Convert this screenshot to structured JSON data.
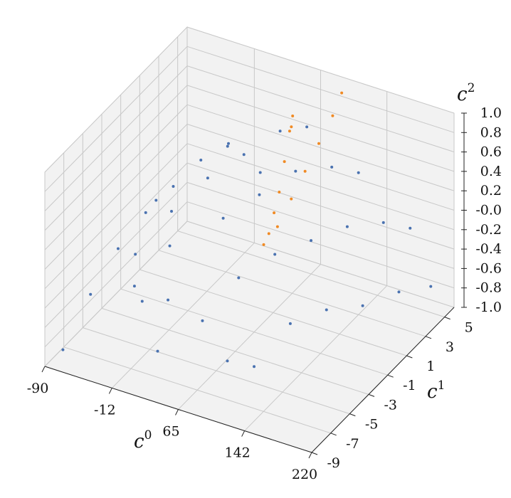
{
  "chart_data": {
    "type": "scatter3d",
    "xlabel": {
      "base": "c",
      "sup": "0"
    },
    "ylabel": {
      "base": "c",
      "sup": "1"
    },
    "zlabel": {
      "base": "c",
      "sup": "2"
    },
    "xlim": [
      -90,
      220
    ],
    "xticks": [
      -90,
      -12,
      65,
      142,
      220
    ],
    "ylim": [
      -9,
      6
    ],
    "yticks": [
      -9,
      -7,
      -5,
      -3,
      -1,
      1,
      3,
      5
    ],
    "zlim": [
      -1,
      1
    ],
    "zticks": [
      {
        "value": -1,
        "label": "-1.0"
      },
      -0.8,
      -0.6,
      -0.4,
      -0.2,
      {
        "value": 0,
        "label": "-0.0"
      },
      0.2,
      0.4,
      0.6,
      0.8,
      {
        "value": 1,
        "label": "1.0"
      }
    ],
    "grid": true,
    "series": [
      {
        "color": "#4a72b0",
        "x": [
          -80,
          -70,
          -60,
          -50,
          -40,
          -30,
          -20,
          -60,
          -40,
          -20,
          0,
          20,
          40,
          60,
          0,
          20,
          40,
          60,
          80,
          100,
          120,
          80,
          100,
          120,
          140,
          160,
          180,
          140,
          160,
          180,
          200,
          215,
          100,
          60,
          -10,
          -30,
          30,
          120,
          50,
          -10
        ],
        "y": [
          -8,
          -6,
          -4,
          -2,
          0,
          2,
          4,
          0,
          -4,
          -2,
          0,
          2,
          4,
          5,
          -4,
          -6,
          -2,
          0,
          2,
          4,
          5,
          -4,
          -2,
          0,
          2,
          4,
          5,
          -4,
          -2,
          0,
          2,
          4,
          -7,
          -6,
          -6,
          -5,
          -8,
          -6,
          1,
          3
        ],
        "z": [
          -0.9,
          -0.5,
          -0.2,
          0.0,
          0.1,
          0.2,
          0.2,
          -0.1,
          -0.2,
          0.1,
          0.3,
          0.4,
          0.5,
          0.5,
          0.0,
          -0.3,
          0.2,
          0.3,
          0.4,
          0.3,
          0.2,
          -0.1,
          0.0,
          0.0,
          0.0,
          -0.1,
          -0.2,
          -0.4,
          -0.4,
          -0.5,
          -0.5,
          -0.6,
          -0.6,
          -0.4,
          -0.4,
          -0.4,
          -0.6,
          -0.7,
          0.4,
          0.3
        ]
      },
      {
        "color": "#f08a24",
        "x": [
          40,
          45,
          50,
          55,
          60,
          65,
          70,
          75,
          80,
          85,
          90,
          95,
          38,
          42
        ],
        "y": [
          5,
          4,
          3,
          2,
          1,
          0,
          1,
          2,
          3,
          4,
          5,
          5.5,
          5.5,
          5
        ],
        "z": [
          0.4,
          0.2,
          0.0,
          -0.1,
          -0.2,
          -0.2,
          -0.1,
          0.1,
          0.3,
          0.5,
          0.7,
          0.9,
          0.5,
          0.45
        ]
      }
    ]
  }
}
